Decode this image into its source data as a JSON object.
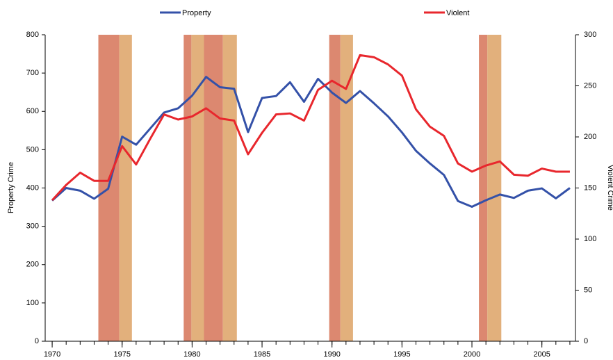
{
  "chart_data": {
    "type": "line",
    "x": [
      1970,
      1971,
      1972,
      1973,
      1974,
      1975,
      1976,
      1977,
      1978,
      1979,
      1980,
      1981,
      1982,
      1983,
      1984,
      1985,
      1986,
      1987,
      1988,
      1989,
      1990,
      1991,
      1992,
      1993,
      1994,
      1995,
      1996,
      1997,
      1998,
      1999,
      2000,
      2001,
      2002,
      2003,
      2004,
      2005,
      2006,
      2007
    ],
    "series": [
      {
        "name": "Property",
        "color": "#3451a8",
        "axis": "y",
        "values": [
          367,
          400,
          393,
          372,
          398,
          534,
          513,
          555,
          597,
          608,
          641,
          690,
          663,
          659,
          546,
          635,
          640,
          676,
          625,
          685,
          649,
          622,
          653,
          621,
          587,
          545,
          497,
          464,
          434,
          366,
          351,
          368,
          383,
          374,
          393,
          399,
          373,
          400
        ]
      },
      {
        "name": "Violent",
        "color": "#e8272d",
        "axis": "y2",
        "values": [
          138,
          153,
          165,
          157,
          157,
          191,
          173,
          198,
          222,
          217,
          220,
          228,
          218,
          216,
          183,
          204,
          222,
          223,
          216,
          246,
          255,
          247,
          280,
          278,
          271,
          260,
          227,
          210,
          201,
          174,
          166,
          172,
          176,
          163,
          162,
          169,
          166,
          166
        ]
      }
    ],
    "bands": [
      {
        "start": 1973.3,
        "end": 1974.8,
        "color": "#dc8870"
      },
      {
        "start": 1974.8,
        "end": 1975.7,
        "color": "#e2b07c"
      },
      {
        "start": 1979.4,
        "end": 1979.95,
        "color": "#dc8870"
      },
      {
        "start": 1979.95,
        "end": 1980.85,
        "color": "#e2b07c"
      },
      {
        "start": 1980.85,
        "end": 1982.2,
        "color": "#dc8870"
      },
      {
        "start": 1982.2,
        "end": 1983.2,
        "color": "#e2b07c"
      },
      {
        "start": 1989.8,
        "end": 1990.6,
        "color": "#dc8870"
      },
      {
        "start": 1990.6,
        "end": 1991.5,
        "color": "#e2b07c"
      },
      {
        "start": 2000.5,
        "end": 2001.1,
        "color": "#dc8870"
      },
      {
        "start": 2001.1,
        "end": 2002.1,
        "color": "#e2b07c"
      }
    ],
    "xlim": [
      1969.5,
      2007.4
    ],
    "xticks": [
      1970,
      1975,
      1980,
      1985,
      1990,
      1995,
      2000,
      2005
    ],
    "xminorticks": [
      1970,
      1971,
      1972,
      1973,
      1974,
      1975,
      1976,
      1977,
      1978,
      1979,
      1980,
      1981,
      1982,
      1983,
      1984,
      1985,
      1986,
      1987,
      1988,
      1989,
      1990,
      1991,
      1992,
      1993,
      1994,
      1995,
      1996,
      1997,
      1998,
      1999,
      2000,
      2001,
      2002,
      2003,
      2004,
      2005,
      2006,
      2007
    ],
    "ylim": [
      0,
      800
    ],
    "yticks": [
      0,
      100,
      200,
      300,
      400,
      500,
      600,
      700,
      800
    ],
    "y2lim": [
      0,
      300
    ],
    "y2ticks": [
      0,
      50,
      100,
      150,
      200,
      250,
      300
    ],
    "ylabel": "Property Crime",
    "y2label": "Violent Crime",
    "grid": false
  }
}
